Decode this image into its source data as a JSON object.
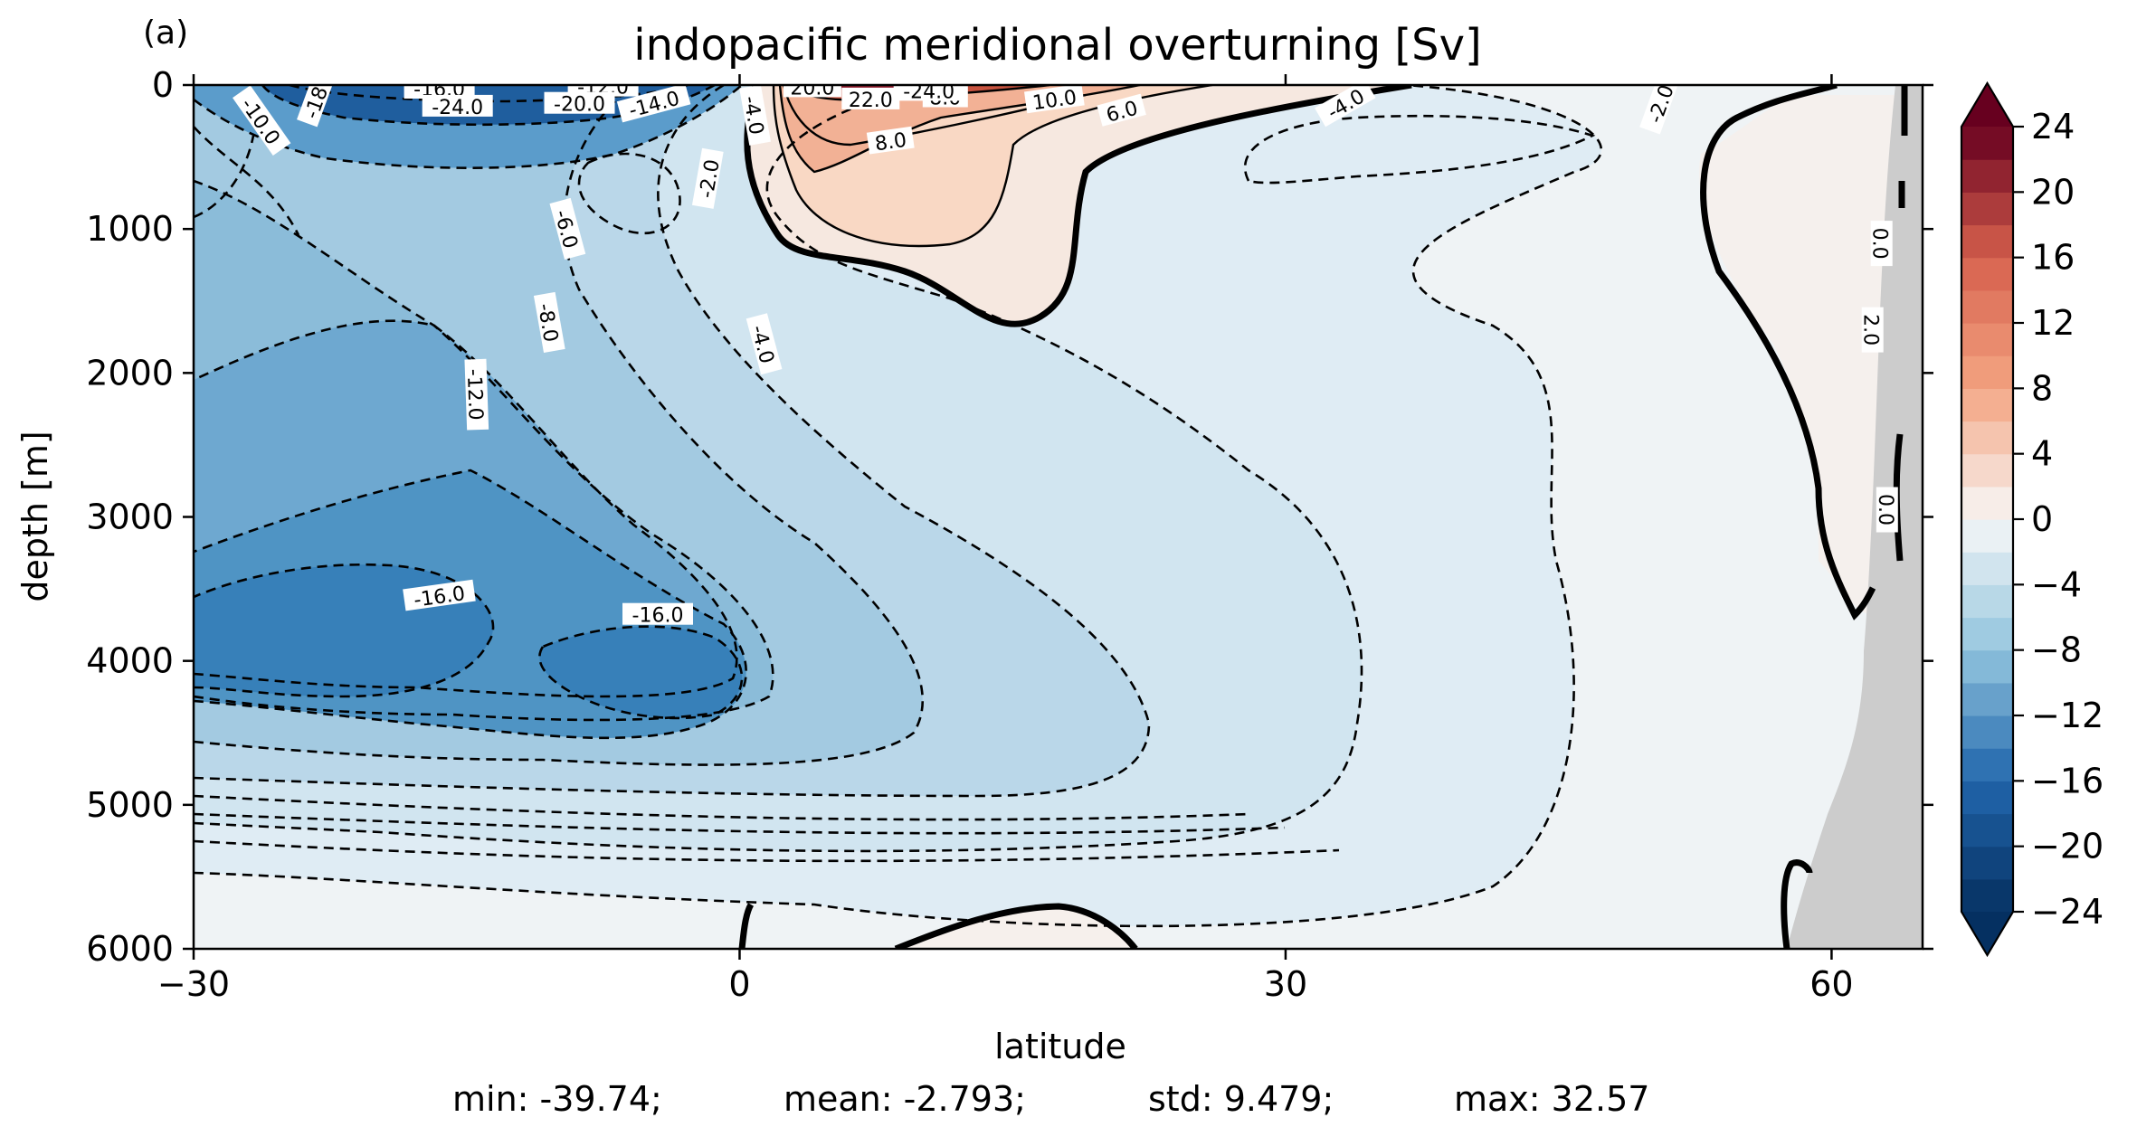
{
  "panel_label": "(a)",
  "chart_data": {
    "type": "contour",
    "title": "indopacific meridional overturning [Sv]",
    "xlabel": "latitude",
    "ylabel": "depth [m]",
    "xlim": [
      -30,
      65
    ],
    "ylim": [
      6000,
      0
    ],
    "xticks": [
      {
        "value": -30,
        "label": "−30"
      },
      {
        "value": 0,
        "label": "0"
      },
      {
        "value": 30,
        "label": "30"
      },
      {
        "value": 60,
        "label": "60"
      }
    ],
    "yticks": [
      {
        "value": 0,
        "label": "0"
      },
      {
        "value": 1000,
        "label": "1000"
      },
      {
        "value": 2000,
        "label": "2000"
      },
      {
        "value": 3000,
        "label": "3000"
      },
      {
        "value": 4000,
        "label": "4000"
      },
      {
        "value": 5000,
        "label": "5000"
      },
      {
        "value": 6000,
        "label": "6000"
      }
    ],
    "colorbar": {
      "colormap": "RdBu_r",
      "range": [
        -24,
        24
      ],
      "step": 2,
      "extend": "both",
      "ticks": [
        {
          "value": 24,
          "label": "24"
        },
        {
          "value": 20,
          "label": "20"
        },
        {
          "value": 16,
          "label": "16"
        },
        {
          "value": 12,
          "label": "12"
        },
        {
          "value": 8,
          "label": "8"
        },
        {
          "value": 4,
          "label": "4"
        },
        {
          "value": 0,
          "label": "0"
        },
        {
          "value": -4,
          "label": "−4"
        },
        {
          "value": -8,
          "label": "−8"
        },
        {
          "value": -12,
          "label": "−12"
        },
        {
          "value": -16,
          "label": "−16"
        },
        {
          "value": -20,
          "label": "−20"
        },
        {
          "value": -24,
          "label": "−24"
        }
      ]
    },
    "contour_labels": [
      {
        "text": "-16.0",
        "lat": -16.5,
        "depth": 3550,
        "angle": -8
      },
      {
        "text": "-16.0",
        "lat": -4.5,
        "depth": 3680,
        "angle": 0
      },
      {
        "text": "-12.0",
        "lat": -14.5,
        "depth": 2150,
        "angle": 88
      },
      {
        "text": "-8.0",
        "lat": -10.5,
        "depth": 1650,
        "angle": 80
      },
      {
        "text": "-6.0",
        "lat": -9.5,
        "depth": 1000,
        "angle": 75
      },
      {
        "text": "-4.0",
        "lat": 1.3,
        "depth": 1800,
        "angle": 75
      },
      {
        "text": "-2.0",
        "lat": -1.7,
        "depth": 650,
        "angle": -80
      },
      {
        "text": "-4.0",
        "lat": 0.8,
        "depth": 210,
        "angle": 80
      },
      {
        "text": "-10.0",
        "lat": -26.3,
        "depth": 250,
        "angle": 55
      },
      {
        "text": "-18",
        "lat": -23.3,
        "depth": 120,
        "angle": -70
      },
      {
        "text": "-16.0",
        "lat": -16.5,
        "depth": 25,
        "angle": 0
      },
      {
        "text": "-24.0",
        "lat": -15.5,
        "depth": 150,
        "angle": 0
      },
      {
        "text": "-12.0",
        "lat": -7.5,
        "depth": 10,
        "angle": 0
      },
      {
        "text": "-20.0",
        "lat": -8.8,
        "depth": 130,
        "angle": 0
      },
      {
        "text": "-14.0",
        "lat": -4.7,
        "depth": 130,
        "angle": -15
      },
      {
        "text": "20.0",
        "lat": 4.0,
        "depth": 15,
        "angle": 0
      },
      {
        "text": "22.0",
        "lat": 7.2,
        "depth": 100,
        "angle": 0
      },
      {
        "text": "8.0",
        "lat": 11.3,
        "depth": 85,
        "angle": 0
      },
      {
        "text": "-24.0",
        "lat": 10.4,
        "depth": 40,
        "angle": 0
      },
      {
        "text": "10.0",
        "lat": 17.3,
        "depth": 100,
        "angle": -8
      },
      {
        "text": "6.0",
        "lat": 21.0,
        "depth": 180,
        "angle": -15
      },
      {
        "text": "8.0",
        "lat": 8.3,
        "depth": 390,
        "angle": -8
      },
      {
        "text": "-4.0",
        "lat": 33.3,
        "depth": 130,
        "angle": -30
      },
      {
        "text": "-2.0",
        "lat": 50.6,
        "depth": 130,
        "angle": -70
      },
      {
        "text": "0.0",
        "lat": 62.7,
        "depth": 1100,
        "angle": 90
      },
      {
        "text": "2.0",
        "lat": 62.2,
        "depth": 1700,
        "angle": 90
      },
      {
        "text": "0.0",
        "lat": 63.0,
        "depth": 2950,
        "angle": 90
      }
    ],
    "stats": {
      "min": "min: -39.74;",
      "mean": "mean: -2.793;",
      "std": "std: 9.479;",
      "max": "max: 32.57"
    }
  }
}
